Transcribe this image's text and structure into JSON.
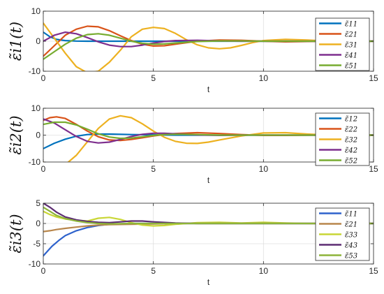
{
  "chart_data": [
    {
      "type": "line",
      "ylabel": "ε̃i1(t)",
      "xlabel": "t",
      "xlim": [
        0,
        15
      ],
      "ylim": [
        -10,
        10
      ],
      "xticks": [
        "0",
        "5",
        "10",
        "15"
      ],
      "yticks": [
        "-10",
        "0",
        "10"
      ],
      "grid": true,
      "legend_position": "top-right",
      "series": [
        {
          "name": "ε̃11",
          "color": "#0072BD",
          "x": [
            0,
            0.3,
            0.6,
            1,
            1.5,
            2,
            3,
            4,
            5,
            6,
            8,
            10,
            12,
            15
          ],
          "y": [
            3,
            1.5,
            0.6,
            0.2,
            0.05,
            0,
            0,
            0,
            0,
            0,
            0,
            0,
            0,
            0
          ]
        },
        {
          "name": "ε̃21",
          "color": "#D95319",
          "x": [
            0,
            0.5,
            1,
            1.5,
            2,
            2.5,
            3,
            3.5,
            4,
            4.5,
            5,
            5.5,
            6,
            7,
            8,
            9,
            10,
            11,
            12,
            13,
            15
          ],
          "y": [
            -5,
            -1.5,
            2,
            4,
            5,
            4.8,
            3.5,
            1.8,
            0.2,
            -1,
            -1.6,
            -1.5,
            -1.0,
            0,
            0.4,
            0.3,
            0,
            -0.2,
            -0.1,
            0,
            0
          ]
        },
        {
          "name": "ε̃31",
          "color": "#EDB120",
          "x": [
            0,
            0.5,
            1,
            1.5,
            2,
            2.5,
            3,
            3.5,
            4,
            4.5,
            5,
            5.5,
            6,
            6.5,
            7,
            7.5,
            8,
            8.5,
            9,
            9.5,
            10,
            11,
            12,
            13,
            14,
            15
          ],
          "y": [
            6,
            1,
            -4,
            -8.5,
            -10.5,
            -10,
            -7,
            -3,
            1.5,
            4,
            4.6,
            4.2,
            2.6,
            0.5,
            -1.2,
            -2.2,
            -2.5,
            -2.2,
            -1.4,
            -0.5,
            0.2,
            0.6,
            0.4,
            0,
            0,
            0
          ]
        },
        {
          "name": "ε̃41",
          "color": "#7E2F8E",
          "x": [
            0,
            0.5,
            1,
            1.5,
            2,
            2.5,
            3,
            3.5,
            4,
            4.5,
            5,
            5.5,
            6,
            7,
            8,
            9,
            10,
            12,
            15
          ],
          "y": [
            0,
            2,
            3,
            2.5,
            1.2,
            -0.2,
            -1.3,
            -1.8,
            -1.8,
            -1.3,
            -0.6,
            -0.1,
            0.2,
            0.3,
            0.1,
            0,
            0,
            0,
            0
          ]
        },
        {
          "name": "ε̃51",
          "color": "#77AC30",
          "x": [
            0,
            0.5,
            1,
            1.5,
            2,
            2.5,
            3,
            3.5,
            4,
            4.5,
            5,
            5.5,
            6,
            7,
            8,
            9,
            10,
            12,
            15
          ],
          "y": [
            -6,
            -3.5,
            -1,
            1,
            2.2,
            2.5,
            2,
            1,
            0,
            -0.7,
            -1,
            -0.9,
            -0.6,
            -0.1,
            0.1,
            0.1,
            0,
            0,
            0
          ]
        }
      ]
    },
    {
      "type": "line",
      "ylabel": "ε̃i2(t)",
      "xlabel": "t",
      "xlim": [
        0,
        15
      ],
      "ylim": [
        -10,
        10
      ],
      "xticks": [
        "0",
        "5",
        "10",
        "15"
      ],
      "yticks": [
        "-10",
        "0",
        "10"
      ],
      "grid": true,
      "legend_position": "top-right",
      "series": [
        {
          "name": "ε̃12",
          "color": "#0072BD",
          "x": [
            0,
            0.5,
            1,
            1.5,
            2,
            2.5,
            3,
            3.5,
            4,
            5,
            6,
            7,
            8,
            10,
            12,
            15
          ],
          "y": [
            -5,
            -3,
            -1.5,
            -0.4,
            0.2,
            0.4,
            0.4,
            0.3,
            0.2,
            0.1,
            0,
            0,
            0,
            0,
            0,
            0
          ]
        },
        {
          "name": "ε̃22",
          "color": "#D95319",
          "x": [
            0,
            0.3,
            0.6,
            1,
            1.5,
            2,
            2.5,
            3,
            3.5,
            4,
            4.5,
            5,
            5.5,
            6,
            7,
            8,
            9,
            10,
            11,
            12,
            13,
            15
          ],
          "y": [
            5.5,
            6.5,
            6.8,
            6.2,
            4,
            1.5,
            -0.6,
            -1.8,
            -2,
            -1.6,
            -1,
            -0.3,
            0.2,
            0.6,
            0.9,
            0.6,
            0.2,
            -0.1,
            -0.1,
            0,
            0,
            0
          ]
        },
        {
          "name": "ε̃32",
          "color": "#EDB120",
          "x": [
            0,
            0.3,
            0.6,
            1,
            1.5,
            2,
            2.5,
            3,
            3.5,
            4,
            4.5,
            5,
            5.5,
            6,
            6.5,
            7,
            7.5,
            8,
            9,
            10,
            11,
            12,
            13,
            15
          ],
          "y": [
            -10,
            -12,
            -12.3,
            -11,
            -7.5,
            -2.5,
            2.5,
            6,
            7.2,
            6.5,
            4.2,
            1.5,
            -0.8,
            -2.3,
            -3,
            -3.1,
            -2.6,
            -1.8,
            -0.3,
            0.8,
            0.9,
            0.4,
            0,
            0
          ]
        },
        {
          "name": "ε̃42",
          "color": "#7E2F8E",
          "x": [
            0,
            0.5,
            1,
            1.5,
            2,
            2.5,
            3,
            3.5,
            4,
            4.5,
            5,
            5.5,
            6,
            7,
            8,
            9,
            10,
            12,
            15
          ],
          "y": [
            6,
            4.5,
            2,
            -0.5,
            -2.3,
            -2.9,
            -2.6,
            -1.6,
            -0.5,
            0.3,
            0.7,
            0.7,
            0.5,
            0.1,
            -0.1,
            0,
            0,
            0,
            0
          ]
        },
        {
          "name": "ε̃52",
          "color": "#77AC30",
          "x": [
            0,
            0.5,
            1,
            1.5,
            2,
            2.5,
            3,
            3.5,
            4,
            4.5,
            5,
            5.5,
            6,
            7,
            8,
            9,
            10,
            12,
            15
          ],
          "y": [
            4,
            4.8,
            4.8,
            3.8,
            2.2,
            0.5,
            -0.7,
            -1.2,
            -1.1,
            -0.6,
            -0.1,
            0.2,
            0.3,
            0.2,
            0,
            0,
            0,
            0,
            0
          ]
        }
      ]
    },
    {
      "type": "line",
      "ylabel": "ε̃i3(t)",
      "xlabel": "t",
      "xlim": [
        0,
        15
      ],
      "ylim": [
        -10,
        5
      ],
      "xticks": [
        "0",
        "5",
        "10",
        "15"
      ],
      "yticks": [
        "-10",
        "-5",
        "0",
        "5"
      ],
      "grid": true,
      "legend_position": "top-right",
      "series": [
        {
          "name": "ε̃11",
          "color": "#2E62CC",
          "x": [
            0,
            0.2,
            0.4,
            0.7,
            1,
            1.5,
            2,
            2.5,
            3,
            4,
            5,
            6,
            8,
            10,
            12,
            15
          ],
          "y": [
            -8,
            -6.8,
            -5.6,
            -4.2,
            -3,
            -1.8,
            -1,
            -0.5,
            -0.2,
            0,
            0,
            0,
            0,
            0,
            0,
            0
          ]
        },
        {
          "name": "ε̃21",
          "color": "#B8864B",
          "x": [
            0,
            0.3,
            0.6,
            1,
            1.5,
            2,
            2.5,
            3,
            4,
            5,
            6,
            8,
            10,
            12,
            15
          ],
          "y": [
            -2,
            -1.8,
            -1.5,
            -1.2,
            -0.9,
            -0.6,
            -0.4,
            -0.3,
            -0.2,
            -0.1,
            0,
            0,
            0,
            0,
            0
          ]
        },
        {
          "name": "ε̃33",
          "color": "#C9D636",
          "x": [
            0,
            0.3,
            0.6,
            1,
            1.5,
            2,
            2.5,
            3,
            3.5,
            4,
            4.5,
            5,
            5.5,
            6,
            7,
            8,
            9,
            10,
            11,
            12,
            15
          ],
          "y": [
            3,
            2.2,
            1.6,
            1.1,
            0.8,
            0.6,
            1.3,
            1.5,
            1.0,
            0.2,
            -0.4,
            -0.6,
            -0.5,
            -0.2,
            0.2,
            0.3,
            0.1,
            0.3,
            0.1,
            0,
            0
          ]
        },
        {
          "name": "ε̃43",
          "color": "#5C2C72",
          "x": [
            0,
            0.3,
            0.6,
            1,
            1.5,
            2,
            2.5,
            3,
            3.5,
            4,
            4.5,
            5,
            6,
            7,
            8,
            10,
            12,
            15
          ],
          "y": [
            5,
            4,
            2.8,
            1.6,
            0.9,
            0.5,
            0.3,
            0.2,
            0.4,
            0.6,
            0.6,
            0.4,
            0.1,
            0,
            0,
            0,
            0,
            0
          ]
        },
        {
          "name": "ε̃53",
          "color": "#8DB43A",
          "x": [
            0,
            0.3,
            0.6,
            1,
            1.5,
            2,
            2.5,
            3,
            4,
            5,
            6,
            8,
            10,
            12,
            15
          ],
          "y": [
            4,
            3,
            2,
            1.2,
            0.6,
            0.2,
            0,
            -0.1,
            0,
            0,
            0,
            0,
            0,
            0,
            0
          ]
        }
      ]
    }
  ]
}
